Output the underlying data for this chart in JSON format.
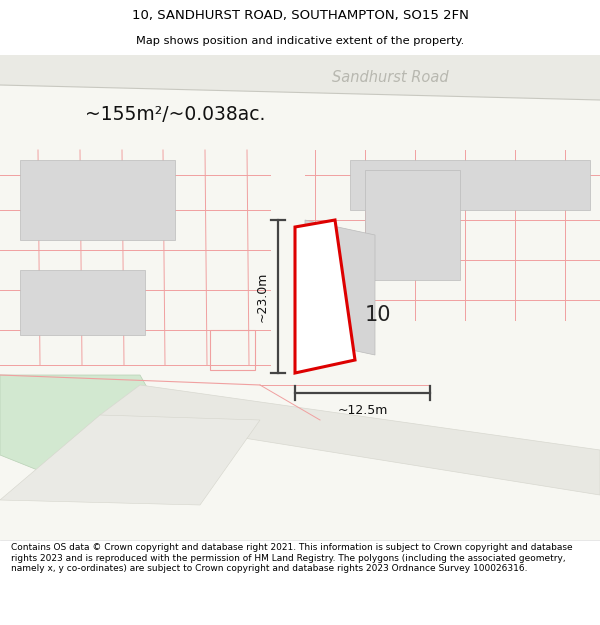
{
  "title_line1": "10, SANDHURST ROAD, SOUTHAMPTON, SO15 2FN",
  "title_line2": "Map shows position and indicative extent of the property.",
  "area_text": "~155m²/~0.038ac.",
  "road_label": "Sandhurst Road",
  "property_number": "10",
  "dim_vertical": "~23.0m",
  "dim_horizontal": "~12.5m",
  "footer_text": "Contains OS data © Crown copyright and database right 2021. This information is subject to Crown copyright and database rights 2023 and is reproduced with the permission of HM Land Registry. The polygons (including the associated geometry, namely x, y co-ordinates) are subject to Crown copyright and database rights 2023 Ordnance Survey 100026316.",
  "map_bg": "#f7f7f2",
  "plot_outline_color": "#dd0000",
  "building_fill": "#d8d8d8",
  "grid_line_color": "#f0a0a0",
  "green_area_color": "#d2e8d0",
  "road_fill": "#e8e8e2",
  "dim_line_color": "#444444"
}
